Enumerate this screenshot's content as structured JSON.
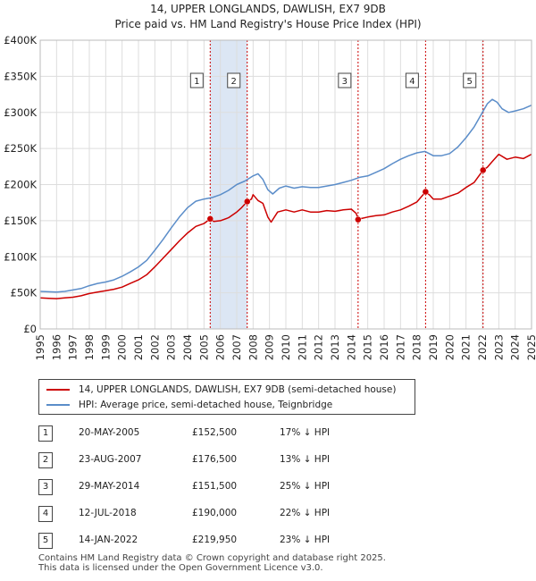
{
  "colors": {
    "property_line": "#cc0000",
    "hpi_line": "#5b8dc9",
    "highlight_band": "#dce6f4",
    "sale_vline": "#cc0000",
    "grid": "#dddddd"
  },
  "chart_data": {
    "type": "line",
    "title": "14, UPPER LONGLANDS, DAWLISH, EX7 9DB",
    "subtitle": "Price paid vs. HM Land Registry's House Price Index (HPI)",
    "xlabel": "",
    "ylabel": "",
    "xlim": [
      1995,
      2025
    ],
    "ylim": [
      0,
      400000
    ],
    "x_ticks": [
      "1995",
      "1996",
      "1997",
      "1998",
      "1999",
      "2000",
      "2001",
      "2002",
      "2003",
      "2004",
      "2005",
      "2006",
      "2007",
      "2008",
      "2009",
      "2010",
      "2011",
      "2012",
      "2013",
      "2014",
      "2015",
      "2016",
      "2017",
      "2018",
      "2019",
      "2020",
      "2021",
      "2022",
      "2023",
      "2024",
      "2025"
    ],
    "y_ticks": [
      {
        "value": 0,
        "label": "£0"
      },
      {
        "value": 50000,
        "label": "£50K"
      },
      {
        "value": 100000,
        "label": "£100K"
      },
      {
        "value": 150000,
        "label": "£150K"
      },
      {
        "value": 200000,
        "label": "£200K"
      },
      {
        "value": 250000,
        "label": "£250K"
      },
      {
        "value": 300000,
        "label": "£300K"
      },
      {
        "value": 350000,
        "label": "£350K"
      },
      {
        "value": 400000,
        "label": "£400K"
      }
    ],
    "grid": true,
    "shaded_bands": [
      [
        2005.38,
        2007.64
      ]
    ],
    "series": [
      {
        "name": "14, UPPER LONGLANDS, DAWLISH, EX7 9DB (semi-detached house)",
        "x": [
          1995,
          1995.5,
          1996,
          1996.5,
          1997,
          1997.5,
          1998,
          1998.5,
          1999,
          1999.5,
          2000,
          2000.5,
          2001,
          2001.5,
          2002,
          2002.5,
          2003,
          2003.5,
          2004,
          2004.5,
          2005,
          2005.38,
          2005.6,
          2006,
          2006.5,
          2007,
          2007.3,
          2007.64,
          2007.9,
          2008,
          2008.3,
          2008.6,
          2008.9,
          2009.1,
          2009.5,
          2010,
          2010.5,
          2011,
          2011.5,
          2012,
          2012.5,
          2013,
          2013.5,
          2014,
          2014.3,
          2014.41,
          2014.6,
          2015,
          2015.5,
          2016,
          2016.5,
          2017,
          2017.5,
          2018,
          2018.53,
          2018.8,
          2019,
          2019.5,
          2020,
          2020.5,
          2021,
          2021.5,
          2022.04,
          2022.3,
          2022.6,
          2023,
          2023.5,
          2024,
          2024.5,
          2025
        ],
        "values": [
          43000,
          42500,
          42000,
          43000,
          44000,
          46000,
          49000,
          51000,
          53000,
          55000,
          58000,
          63000,
          68000,
          75000,
          86000,
          98000,
          110000,
          122000,
          133000,
          142000,
          146000,
          152500,
          149000,
          150000,
          154000,
          162000,
          168000,
          176500,
          180000,
          186000,
          178000,
          174000,
          155000,
          148000,
          162000,
          165000,
          162000,
          165000,
          162000,
          162000,
          164000,
          163000,
          165000,
          166000,
          160000,
          151500,
          153000,
          155000,
          157000,
          158000,
          162000,
          165000,
          170000,
          176000,
          190000,
          185000,
          180000,
          180000,
          184000,
          188000,
          196000,
          203000,
          219950,
          224000,
          232000,
          242000,
          235000,
          238000,
          236000,
          242000
        ]
      },
      {
        "name": "HPI: Average price, semi-detached house, Teignbridge",
        "x": [
          1995,
          1995.5,
          1996,
          1996.5,
          1997,
          1997.5,
          1998,
          1998.5,
          1999,
          1999.5,
          2000,
          2000.5,
          2001,
          2001.5,
          2002,
          2002.5,
          2003,
          2003.5,
          2004,
          2004.5,
          2005,
          2005.5,
          2006,
          2006.5,
          2007,
          2007.5,
          2008,
          2008.3,
          2008.6,
          2008.9,
          2009.2,
          2009.6,
          2010,
          2010.5,
          2011,
          2011.5,
          2012,
          2012.5,
          2013,
          2013.5,
          2014,
          2014.5,
          2015,
          2015.5,
          2016,
          2016.5,
          2017,
          2017.5,
          2018,
          2018.5,
          2019,
          2019.5,
          2020,
          2020.5,
          2021,
          2021.5,
          2022,
          2022.3,
          2022.6,
          2022.9,
          2023.2,
          2023.6,
          2024,
          2024.5,
          2025
        ],
        "values": [
          52000,
          51500,
          51000,
          52000,
          54000,
          56000,
          60000,
          63000,
          65000,
          68000,
          73000,
          79000,
          86000,
          95000,
          109000,
          124000,
          140000,
          155000,
          168000,
          177000,
          180000,
          182000,
          186000,
          192000,
          200000,
          205000,
          212000,
          215000,
          207000,
          193000,
          187000,
          195000,
          198000,
          195000,
          197000,
          196000,
          196000,
          198000,
          200000,
          203000,
          206000,
          210000,
          212000,
          217000,
          222000,
          229000,
          235000,
          240000,
          244000,
          246000,
          240000,
          240000,
          243000,
          252000,
          265000,
          280000,
          300000,
          312000,
          318000,
          314000,
          305000,
          300000,
          302000,
          305000,
          310000
        ]
      }
    ],
    "sale_markers": [
      {
        "label": "1",
        "x": 2005.38,
        "value": 152500
      },
      {
        "label": "2",
        "x": 2007.64,
        "value": 176500
      },
      {
        "label": "3",
        "x": 2014.41,
        "value": 151500
      },
      {
        "label": "4",
        "x": 2018.53,
        "value": 190000
      },
      {
        "label": "5",
        "x": 2022.04,
        "value": 219950
      }
    ]
  },
  "legend": {
    "property_label": "14, UPPER LONGLANDS, DAWLISH, EX7 9DB (semi-detached house)",
    "hpi_label": "HPI: Average price, semi-detached house, Teignbridge"
  },
  "sales": [
    {
      "num": "1",
      "date": "20-MAY-2005",
      "price": "£152,500",
      "hpi": "17% ↓ HPI"
    },
    {
      "num": "2",
      "date": "23-AUG-2007",
      "price": "£176,500",
      "hpi": "13% ↓ HPI"
    },
    {
      "num": "3",
      "date": "29-MAY-2014",
      "price": "£151,500",
      "hpi": "25% ↓ HPI"
    },
    {
      "num": "4",
      "date": "12-JUL-2018",
      "price": "£190,000",
      "hpi": "22% ↓ HPI"
    },
    {
      "num": "5",
      "date": "14-JAN-2022",
      "price": "£219,950",
      "hpi": "23% ↓ HPI"
    }
  ],
  "footer": {
    "line1": "Contains HM Land Registry data © Crown copyright and database right 2025.",
    "line2": "This data is licensed under the Open Government Licence v3.0."
  }
}
